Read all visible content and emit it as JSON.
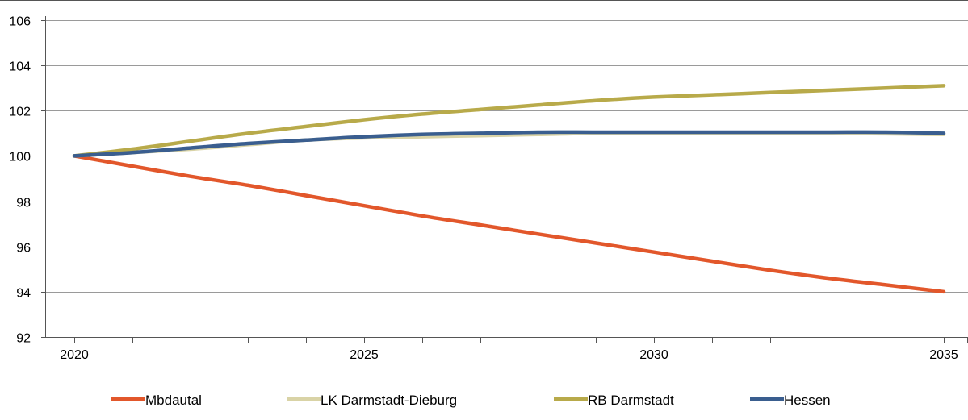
{
  "chart_data": {
    "type": "line",
    "title": "",
    "xlabel": "",
    "ylabel": "",
    "x_ticks": [
      "2020",
      "2025",
      "2030",
      "2035"
    ],
    "x_range": [
      2020,
      2035
    ],
    "ylim": [
      92,
      106
    ],
    "y_ticks": [
      "92",
      "94",
      "96",
      "98",
      "100",
      "102",
      "104",
      "106"
    ],
    "grid": "horizontal",
    "legend_position": "bottom",
    "x": [
      2020,
      2021,
      2022,
      2023,
      2024,
      2025,
      2026,
      2027,
      2028,
      2029,
      2030,
      2031,
      2032,
      2033,
      2034,
      2035
    ],
    "series": [
      {
        "name": "Mbdautal",
        "color": "#e2572b",
        "values": [
          100.0,
          99.55,
          99.1,
          98.7,
          98.25,
          97.8,
          97.35,
          96.95,
          96.55,
          96.15,
          95.75,
          95.35,
          94.95,
          94.6,
          94.3,
          94.0
        ]
      },
      {
        "name": "LK Darmstadt-Dieburg",
        "color": "#d9d3a6",
        "values": [
          100.0,
          100.15,
          100.3,
          100.5,
          100.7,
          100.8,
          100.85,
          100.9,
          100.95,
          101.0,
          101.0,
          101.0,
          101.0,
          101.0,
          100.98,
          100.95
        ]
      },
      {
        "name": "RB Darmstadt",
        "color": "#b8aa4a",
        "values": [
          100.0,
          100.3,
          100.65,
          101.0,
          101.3,
          101.6,
          101.85,
          102.05,
          102.25,
          102.45,
          102.6,
          102.7,
          102.8,
          102.9,
          103.0,
          103.1
        ]
      },
      {
        "name": "Hessen",
        "color": "#3a5e8f",
        "values": [
          100.0,
          100.15,
          100.35,
          100.55,
          100.7,
          100.85,
          100.95,
          101.0,
          101.05,
          101.05,
          101.05,
          101.05,
          101.05,
          101.05,
          101.05,
          101.0
        ]
      }
    ]
  }
}
